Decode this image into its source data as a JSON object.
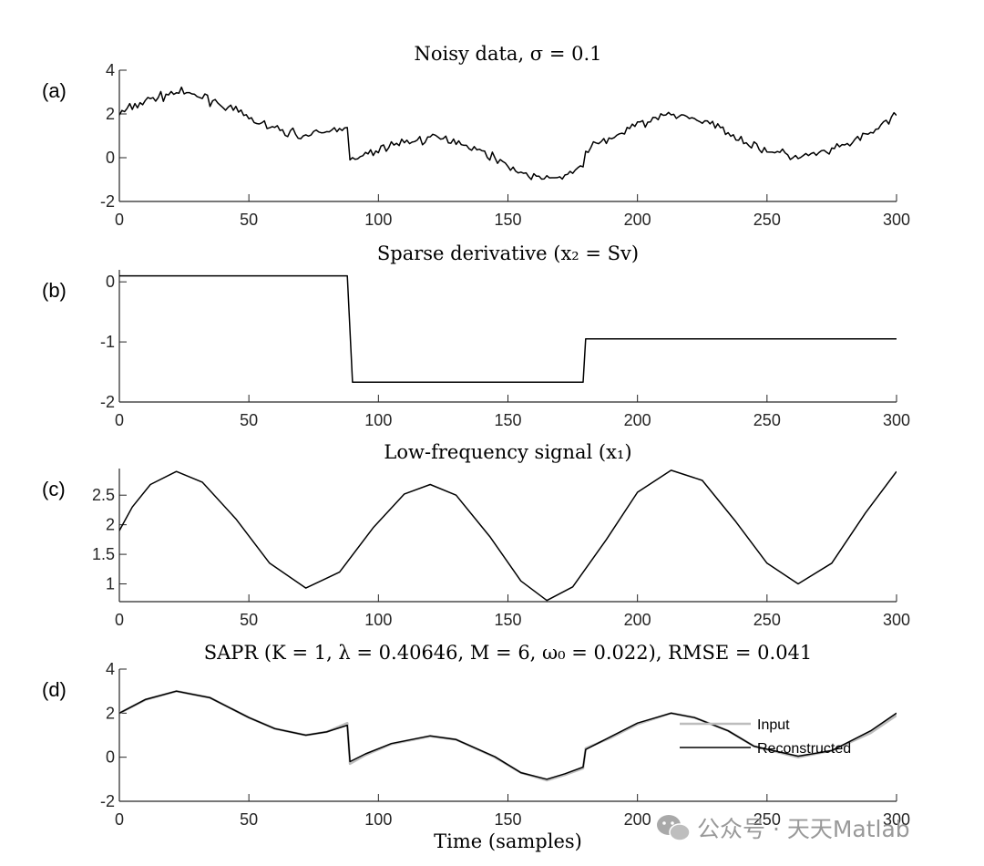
{
  "chart_data": [
    {
      "id": "a",
      "type": "line",
      "panel_label": "(a)",
      "title": "Noisy data, σ = 0.1",
      "xlabel": "",
      "ylabel": "",
      "xlim": [
        0,
        300
      ],
      "ylim": [
        -2,
        4
      ],
      "xticks": [
        0,
        50,
        100,
        150,
        200,
        250,
        300
      ],
      "yticks": [
        -2,
        0,
        2,
        4
      ],
      "series": [
        {
          "color": "#000000",
          "noisy": true,
          "noise_sigma": 0.1,
          "x": [
            0,
            10,
            22,
            35,
            50,
            60,
            72,
            80,
            88,
            89,
            95,
            105,
            120,
            130,
            145,
            155,
            165,
            172,
            179,
            180,
            190,
            200,
            213,
            222,
            235,
            245,
            262,
            275,
            290,
            300
          ],
          "y": [
            2.0,
            2.6,
            3.0,
            2.7,
            1.8,
            1.3,
            1.0,
            1.15,
            1.5,
            -0.2,
            0.1,
            0.6,
            0.9,
            0.8,
            0.0,
            -0.7,
            -1.0,
            -0.8,
            -0.5,
            0.4,
            0.9,
            1.5,
            2.0,
            1.8,
            1.2,
            0.5,
            0.0,
            0.3,
            1.1,
            2.0
          ]
        }
      ]
    },
    {
      "id": "b",
      "type": "line",
      "panel_label": "(b)",
      "title": "Sparse derivative (x₂ = Sv)",
      "xlabel": "",
      "ylabel": "",
      "xlim": [
        0,
        300
      ],
      "ylim": [
        -2,
        0.2
      ],
      "xticks": [
        0,
        50,
        100,
        150,
        200,
        250,
        300
      ],
      "yticks": [
        -2,
        -1,
        0
      ],
      "series": [
        {
          "color": "#000000",
          "x": [
            0,
            88,
            90,
            179,
            180,
            300
          ],
          "y": [
            0.1,
            0.1,
            -1.67,
            -1.67,
            -0.95,
            -0.95
          ]
        }
      ]
    },
    {
      "id": "c",
      "type": "line",
      "panel_label": "(c)",
      "title": "Low-frequency signal (x₁)",
      "xlabel": "",
      "ylabel": "",
      "xlim": [
        0,
        300
      ],
      "ylim": [
        0.7,
        2.95
      ],
      "xticks": [
        0,
        50,
        100,
        150,
        200,
        250,
        300
      ],
      "yticks": [
        1,
        1.5,
        2,
        2.5
      ],
      "series": [
        {
          "color": "#000000",
          "x": [
            0,
            5,
            12,
            22,
            32,
            45,
            58,
            72,
            85,
            98,
            110,
            120,
            130,
            143,
            155,
            165,
            175,
            188,
            200,
            213,
            225,
            238,
            250,
            262,
            275,
            288,
            300
          ],
          "y": [
            1.9,
            2.3,
            2.68,
            2.9,
            2.72,
            2.1,
            1.35,
            0.93,
            1.2,
            1.95,
            2.52,
            2.68,
            2.5,
            1.8,
            1.05,
            0.72,
            0.95,
            1.75,
            2.55,
            2.92,
            2.75,
            2.05,
            1.35,
            1.0,
            1.35,
            2.2,
            2.9
          ]
        }
      ]
    },
    {
      "id": "d",
      "type": "line",
      "panel_label": "(d)",
      "title": "SAPR (K = 1, λ = 0.40646, M = 6, ω₀ = 0.022), RMSE = 0.041",
      "xlabel": "Time (samples)",
      "ylabel": "",
      "xlim": [
        0,
        300
      ],
      "ylim": [
        -2,
        4
      ],
      "xticks": [
        0,
        50,
        100,
        150,
        200,
        250,
        300
      ],
      "yticks": [
        -2,
        0,
        2,
        4
      ],
      "legend": "inside-right",
      "series": [
        {
          "name": "Input",
          "color": "#bdbdbd",
          "x": [
            0,
            10,
            22,
            35,
            50,
            60,
            72,
            80,
            88,
            89,
            95,
            105,
            120,
            130,
            145,
            155,
            165,
            172,
            179,
            180,
            190,
            200,
            213,
            222,
            235,
            245,
            262,
            275,
            290,
            300
          ],
          "y": [
            2.0,
            2.6,
            3.0,
            2.7,
            1.8,
            1.3,
            1.0,
            1.15,
            1.55,
            -0.3,
            0.1,
            0.6,
            0.95,
            0.8,
            0.0,
            -0.7,
            -1.05,
            -0.8,
            -0.5,
            0.4,
            0.9,
            1.5,
            2.0,
            1.8,
            1.2,
            0.5,
            0.0,
            0.3,
            1.1,
            1.9
          ]
        },
        {
          "name": "Reconstructed",
          "color": "#000000",
          "x": [
            0,
            10,
            22,
            35,
            50,
            60,
            72,
            80,
            88,
            89,
            95,
            105,
            120,
            130,
            145,
            155,
            165,
            172,
            179,
            180,
            190,
            200,
            213,
            222,
            235,
            245,
            262,
            275,
            290,
            300
          ],
          "y": [
            2.0,
            2.62,
            3.0,
            2.7,
            1.8,
            1.3,
            1.0,
            1.15,
            1.45,
            -0.2,
            0.15,
            0.62,
            0.97,
            0.8,
            0.02,
            -0.7,
            -1.0,
            -0.75,
            -0.45,
            0.35,
            0.95,
            1.55,
            2.0,
            1.8,
            1.2,
            0.5,
            0.05,
            0.3,
            1.2,
            2.0
          ]
        }
      ]
    }
  ],
  "watermark": {
    "text": "公众号 · 天天Matlab",
    "icon": "wechat-icon"
  }
}
